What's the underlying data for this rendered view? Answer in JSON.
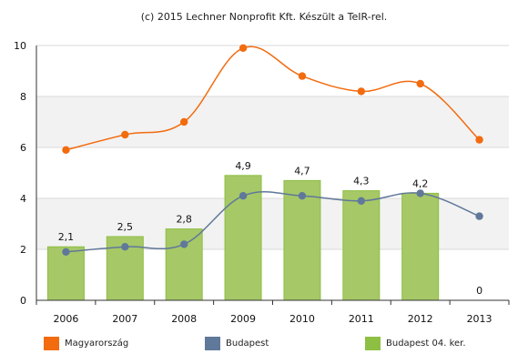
{
  "chart_data": {
    "type": "bar",
    "title": "(c) 2015 Lechner Nonprofit Kft. Készült a TeIR-rel.",
    "categories": [
      "2006",
      "2007",
      "2008",
      "2009",
      "2010",
      "2011",
      "2012",
      "2013"
    ],
    "ylim": [
      0,
      10
    ],
    "yticks": [
      0,
      2,
      4,
      6,
      8,
      10
    ],
    "grid": true,
    "legend_position": "bottom",
    "series": [
      {
        "name": "Budapest 04. ker.",
        "kind": "bar",
        "color": "#a6c867",
        "values": [
          2.1,
          2.5,
          2.8,
          4.9,
          4.7,
          4.3,
          4.2,
          0
        ],
        "labels": [
          "2,1",
          "2,5",
          "2,8",
          "4,9",
          "4,7",
          "4,3",
          "4,2",
          "0"
        ]
      },
      {
        "name": "Magyarország",
        "kind": "line",
        "color": "#f26b0f",
        "values": [
          5.9,
          6.5,
          7.0,
          9.9,
          8.8,
          8.2,
          8.5,
          6.3
        ]
      },
      {
        "name": "Budapest",
        "kind": "line",
        "color": "#60789a",
        "values": [
          1.9,
          2.1,
          2.2,
          4.1,
          4.1,
          3.9,
          4.2,
          3.3
        ]
      }
    ]
  },
  "legend": [
    {
      "name": "Magyarország",
      "color": "#f26b0f"
    },
    {
      "name": "Budapest",
      "color": "#60789a"
    },
    {
      "name": "Budapest 04. ker.",
      "color": "#8dbf42"
    }
  ]
}
